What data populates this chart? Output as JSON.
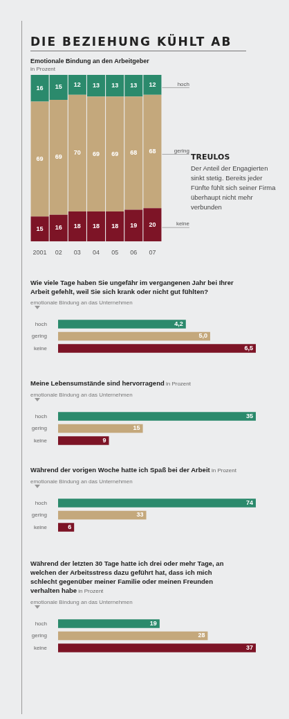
{
  "chart_data": [
    {
      "type": "bar",
      "title": "DIE BEZIEHUNG KÜHLT AB",
      "subtitle": "Emotionale Bindung an den Arbeitgeber",
      "ylabel": "in Prozent",
      "stacked": true,
      "data_labels": true,
      "legend": false,
      "grid": false,
      "categories": [
        "2001",
        "02",
        "03",
        "04",
        "05",
        "06",
        "07"
      ],
      "series": [
        {
          "name": "keine",
          "color": "#7d1426",
          "values": [
            15,
            16,
            18,
            18,
            18,
            19,
            20
          ]
        },
        {
          "name": "gering",
          "color": "#c4a87c",
          "values": [
            69,
            69,
            70,
            69,
            69,
            68,
            68
          ]
        },
        {
          "name": "hoch",
          "color": "#2b8a6c",
          "values": [
            16,
            15,
            12,
            13,
            13,
            13,
            12
          ]
        }
      ],
      "annotations": [
        "TREULOS",
        "Der Anteil der Engagierten sinkt stetig. Bereits jeder Fünfte fühlt sich seiner Firma überhaupt nicht mehr verbunden"
      ]
    },
    {
      "type": "bar",
      "orientation": "horizontal",
      "title": "Wie viele Tage haben Sie ungefähr im vergangenen Jahr bei Ihrer Arbeit gefehlt, weil Sie sich krank oder nicht gut fühlten?",
      "ylabel": "emotionale Bindung an das Unternehmen",
      "legend": false,
      "grid": false,
      "categories": [
        "hoch",
        "gering",
        "keine"
      ],
      "values": [
        4.2,
        5.0,
        6.5
      ],
      "value_labels": [
        "4,2",
        "5,0",
        "6,5"
      ],
      "colors": [
        "#2b8a6c",
        "#c4a87c",
        "#7d1426"
      ]
    },
    {
      "type": "bar",
      "orientation": "horizontal",
      "title": "Meine Lebensumstände sind hervorragend",
      "subtitle": "in Prozent",
      "ylabel": "emotionale Bindung an das Unternehmen",
      "data_labels": true,
      "legend": false,
      "grid": false,
      "categories": [
        "hoch",
        "gering",
        "keine"
      ],
      "values": [
        35,
        15,
        9
      ],
      "colors": [
        "#2b8a6c",
        "#c4a87c",
        "#7d1426"
      ]
    },
    {
      "type": "bar",
      "orientation": "horizontal",
      "title": "Während der vorigen Woche hatte ich Spaß bei der Arbeit",
      "subtitle": "in Prozent",
      "ylabel": "emotionale Bindung an das Unternehmen",
      "data_labels": true,
      "legend": false,
      "grid": false,
      "categories": [
        "hoch",
        "gering",
        "keine"
      ],
      "values": [
        74,
        33,
        6
      ],
      "colors": [
        "#2b8a6c",
        "#c4a87c",
        "#7d1426"
      ]
    },
    {
      "type": "bar",
      "orientation": "horizontal",
      "title": "Während der letzten 30 Tage hatte ich drei oder mehr Tage, an welchen der Arbeitsstress dazu geführt hat, dass ich mich schlecht gegenüber meiner Familie oder meinen Freunden verhalten habe",
      "subtitle": "in Prozent",
      "ylabel": "emotionale Bindung an das Unternehmen",
      "data_labels": true,
      "legend": false,
      "grid": false,
      "categories": [
        "hoch",
        "gering",
        "keine"
      ],
      "values": [
        19,
        28,
        37
      ],
      "colors": [
        "#2b8a6c",
        "#c4a87c",
        "#7d1426"
      ]
    }
  ]
}
